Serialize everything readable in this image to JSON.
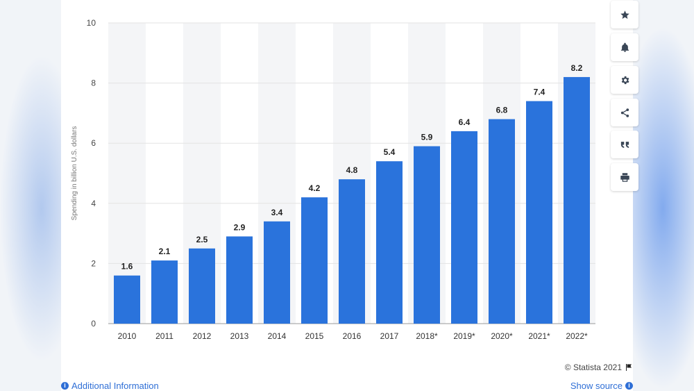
{
  "chart_data": {
    "type": "bar",
    "categories": [
      "2010",
      "2011",
      "2012",
      "2013",
      "2014",
      "2015",
      "2016",
      "2017",
      "2018*",
      "2019*",
      "2020*",
      "2021*",
      "2022*"
    ],
    "values": [
      1.6,
      2.1,
      2.5,
      2.9,
      3.4,
      4.2,
      4.8,
      5.4,
      5.9,
      6.4,
      6.8,
      7.4,
      8.2
    ],
    "value_labels": [
      "1.6",
      "2.1",
      "2.5",
      "2.9",
      "3.4",
      "4.2",
      "4.8",
      "5.4",
      "5.9",
      "6.4",
      "6.8",
      "7.4",
      "8.2"
    ],
    "ylabel": "Spending in billion U.S. dollars",
    "xlabel": "",
    "ylim": [
      0,
      10
    ],
    "yticks": [
      "0",
      "2",
      "4",
      "6",
      "8",
      "10"
    ],
    "grid": true,
    "bar_color": "#2a73dc",
    "alt_column_shade": "#f4f5f7"
  },
  "credit": {
    "text": "© Statista 2021",
    "icon": "flag-icon"
  },
  "footer": {
    "additional_info": "Additional Information",
    "show_source": "Show source"
  },
  "toolbar": {
    "items": [
      "star-icon",
      "bell-icon",
      "gear-icon",
      "share-icon",
      "quote-icon",
      "print-icon"
    ]
  }
}
